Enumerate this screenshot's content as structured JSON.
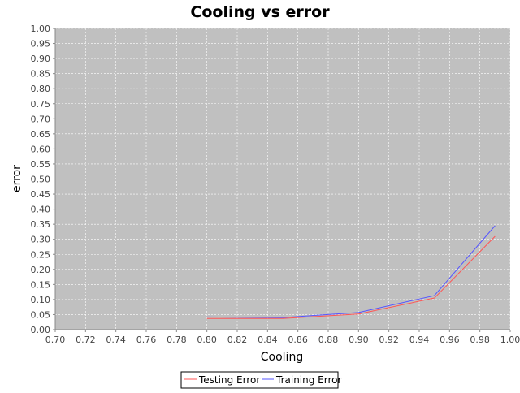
{
  "chart_data": {
    "type": "line",
    "title": "Cooling vs error",
    "xlabel": "Cooling",
    "ylabel": "error",
    "xlim": [
      0.7,
      1.0
    ],
    "ylim": [
      0.0,
      1.0
    ],
    "x_ticks": [
      "0.70",
      "0.72",
      "0.74",
      "0.76",
      "0.78",
      "0.80",
      "0.82",
      "0.84",
      "0.86",
      "0.88",
      "0.90",
      "0.92",
      "0.94",
      "0.96",
      "0.98",
      "1.00"
    ],
    "y_ticks": [
      "0.00",
      "0.05",
      "0.10",
      "0.15",
      "0.20",
      "0.25",
      "0.30",
      "0.35",
      "0.40",
      "0.45",
      "0.50",
      "0.55",
      "0.60",
      "0.65",
      "0.70",
      "0.75",
      "0.80",
      "0.85",
      "0.90",
      "0.95",
      "1.00"
    ],
    "grid": true,
    "plot_background": "#c0c0c0",
    "legend_position": "bottom",
    "series": [
      {
        "name": "Testing Error",
        "color": "#ff5555",
        "x": [
          0.8,
          0.85,
          0.9,
          0.95,
          0.99
        ],
        "y": [
          0.037,
          0.037,
          0.052,
          0.105,
          0.31
        ]
      },
      {
        "name": "Training Error",
        "color": "#5555ff",
        "x": [
          0.8,
          0.85,
          0.9,
          0.95,
          0.99
        ],
        "y": [
          0.042,
          0.04,
          0.057,
          0.113,
          0.345
        ]
      }
    ]
  }
}
